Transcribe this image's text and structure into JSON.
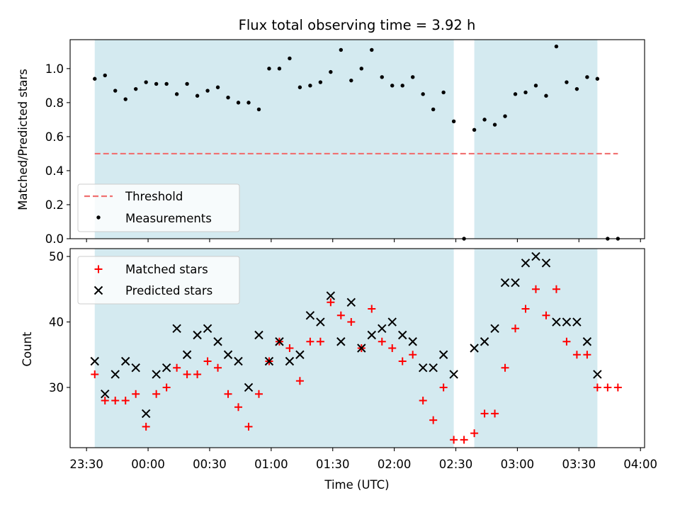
{
  "chart_data": [
    {
      "type": "scatter",
      "title": "Flux total observing time = 3.92 h",
      "ylabel": "Matched/Predicted stars",
      "xlabel": "",
      "ylim": [
        0,
        1.17
      ],
      "xlim": [
        "23:22",
        "04:02"
      ],
      "yticks": [
        "0.0",
        "0.2",
        "0.4",
        "0.6",
        "0.8",
        "1.0"
      ],
      "grid": false,
      "legend_position": "lower-left",
      "shaded_intervals": [
        [
          "23:34",
          "02:29"
        ],
        [
          "02:39",
          "03:39"
        ]
      ],
      "shade_color": "#d4eaf0",
      "threshold": {
        "name": "Threshold",
        "value": 0.5,
        "x_range": [
          "23:34",
          "03:49"
        ],
        "color": "#f07070"
      },
      "series": [
        {
          "name": "Measurements",
          "color": "#000000",
          "points": [
            [
              "23:34",
              0.94
            ],
            [
              "23:39",
              0.96
            ],
            [
              "23:44",
              0.87
            ],
            [
              "23:49",
              0.82
            ],
            [
              "23:54",
              0.88
            ],
            [
              "23:59",
              0.92
            ],
            [
              "00:04",
              0.91
            ],
            [
              "00:09",
              0.91
            ],
            [
              "00:14",
              0.85
            ],
            [
              "00:19",
              0.91
            ],
            [
              "00:24",
              0.84
            ],
            [
              "00:29",
              0.87
            ],
            [
              "00:34",
              0.89
            ],
            [
              "00:39",
              0.83
            ],
            [
              "00:44",
              0.8
            ],
            [
              "00:49",
              0.8
            ],
            [
              "00:54",
              0.76
            ],
            [
              "00:59",
              1.0
            ],
            [
              "01:04",
              1.0
            ],
            [
              "01:09",
              1.06
            ],
            [
              "01:14",
              0.89
            ],
            [
              "01:19",
              0.9
            ],
            [
              "01:24",
              0.92
            ],
            [
              "01:29",
              0.98
            ],
            [
              "01:34",
              1.11
            ],
            [
              "01:39",
              0.93
            ],
            [
              "01:44",
              1.0
            ],
            [
              "01:49",
              1.11
            ],
            [
              "01:54",
              0.95
            ],
            [
              "01:59",
              0.9
            ],
            [
              "02:04",
              0.9
            ],
            [
              "02:09",
              0.95
            ],
            [
              "02:14",
              0.85
            ],
            [
              "02:19",
              0.76
            ],
            [
              "02:24",
              0.86
            ],
            [
              "02:29",
              0.69
            ],
            [
              "02:34",
              0.0
            ],
            [
              "02:39",
              0.64
            ],
            [
              "02:44",
              0.7
            ],
            [
              "02:49",
              0.67
            ],
            [
              "02:54",
              0.72
            ],
            [
              "02:59",
              0.85
            ],
            [
              "03:04",
              0.86
            ],
            [
              "03:09",
              0.9
            ],
            [
              "03:14",
              0.84
            ],
            [
              "03:19",
              1.13
            ],
            [
              "03:24",
              0.92
            ],
            [
              "03:29",
              0.88
            ],
            [
              "03:34",
              0.95
            ],
            [
              "03:39",
              0.94
            ],
            [
              "03:44",
              0.0
            ],
            [
              "03:49",
              0.0
            ]
          ]
        }
      ]
    },
    {
      "type": "scatter",
      "title": "",
      "ylabel": "Count",
      "xlabel": "Time (UTC)",
      "ylim": [
        20.8,
        51.2
      ],
      "xlim": [
        "23:22",
        "04:02"
      ],
      "yticks": [
        "30",
        "40",
        "50"
      ],
      "xticks": [
        "23:30",
        "00:00",
        "00:30",
        "01:00",
        "01:30",
        "02:00",
        "02:30",
        "03:00",
        "03:30",
        "04:00"
      ],
      "grid": false,
      "legend_position": "upper-left",
      "shaded_intervals": [
        [
          "23:34",
          "02:29"
        ],
        [
          "02:39",
          "03:39"
        ]
      ],
      "shade_color": "#d4eaf0",
      "x": [
        "23:34",
        "23:39",
        "23:44",
        "23:49",
        "23:54",
        "23:59",
        "00:04",
        "00:09",
        "00:14",
        "00:19",
        "00:24",
        "00:29",
        "00:34",
        "00:39",
        "00:44",
        "00:49",
        "00:54",
        "00:59",
        "01:04",
        "01:09",
        "01:14",
        "01:19",
        "01:24",
        "01:29",
        "01:34",
        "01:39",
        "01:44",
        "01:49",
        "01:54",
        "01:59",
        "02:04",
        "02:09",
        "02:14",
        "02:19",
        "02:24",
        "02:29",
        "02:34",
        "02:39",
        "02:44",
        "02:49",
        "02:54",
        "02:59",
        "03:04",
        "03:09",
        "03:14",
        "03:19",
        "03:24",
        "03:29",
        "03:34",
        "03:39",
        "03:44",
        "03:49"
      ],
      "series": [
        {
          "name": "Matched stars",
          "marker": "plus",
          "color": "#ff0000",
          "values": [
            32,
            28,
            28,
            28,
            29,
            24,
            29,
            30,
            33,
            32,
            32,
            34,
            33,
            29,
            27,
            24,
            29,
            34,
            37,
            36,
            31,
            37,
            37,
            43,
            41,
            40,
            36,
            42,
            37,
            36,
            34,
            35,
            28,
            25,
            30,
            22,
            22,
            23,
            26,
            26,
            33,
            39,
            42,
            45,
            41,
            45,
            37,
            35,
            35,
            30,
            30,
            30
          ]
        },
        {
          "name": "Predicted stars",
          "marker": "x",
          "color": "#000000",
          "values": [
            34,
            29,
            32,
            34,
            33,
            26,
            32,
            33,
            39,
            35,
            38,
            39,
            37,
            35,
            34,
            30,
            38,
            34,
            37,
            34,
            35,
            41,
            40,
            44,
            37,
            43,
            36,
            38,
            39,
            40,
            38,
            37,
            33,
            33,
            35,
            32,
            null,
            36,
            37,
            39,
            46,
            46,
            49,
            50,
            49,
            40,
            40,
            40,
            37,
            32,
            null,
            null
          ]
        }
      ]
    }
  ]
}
